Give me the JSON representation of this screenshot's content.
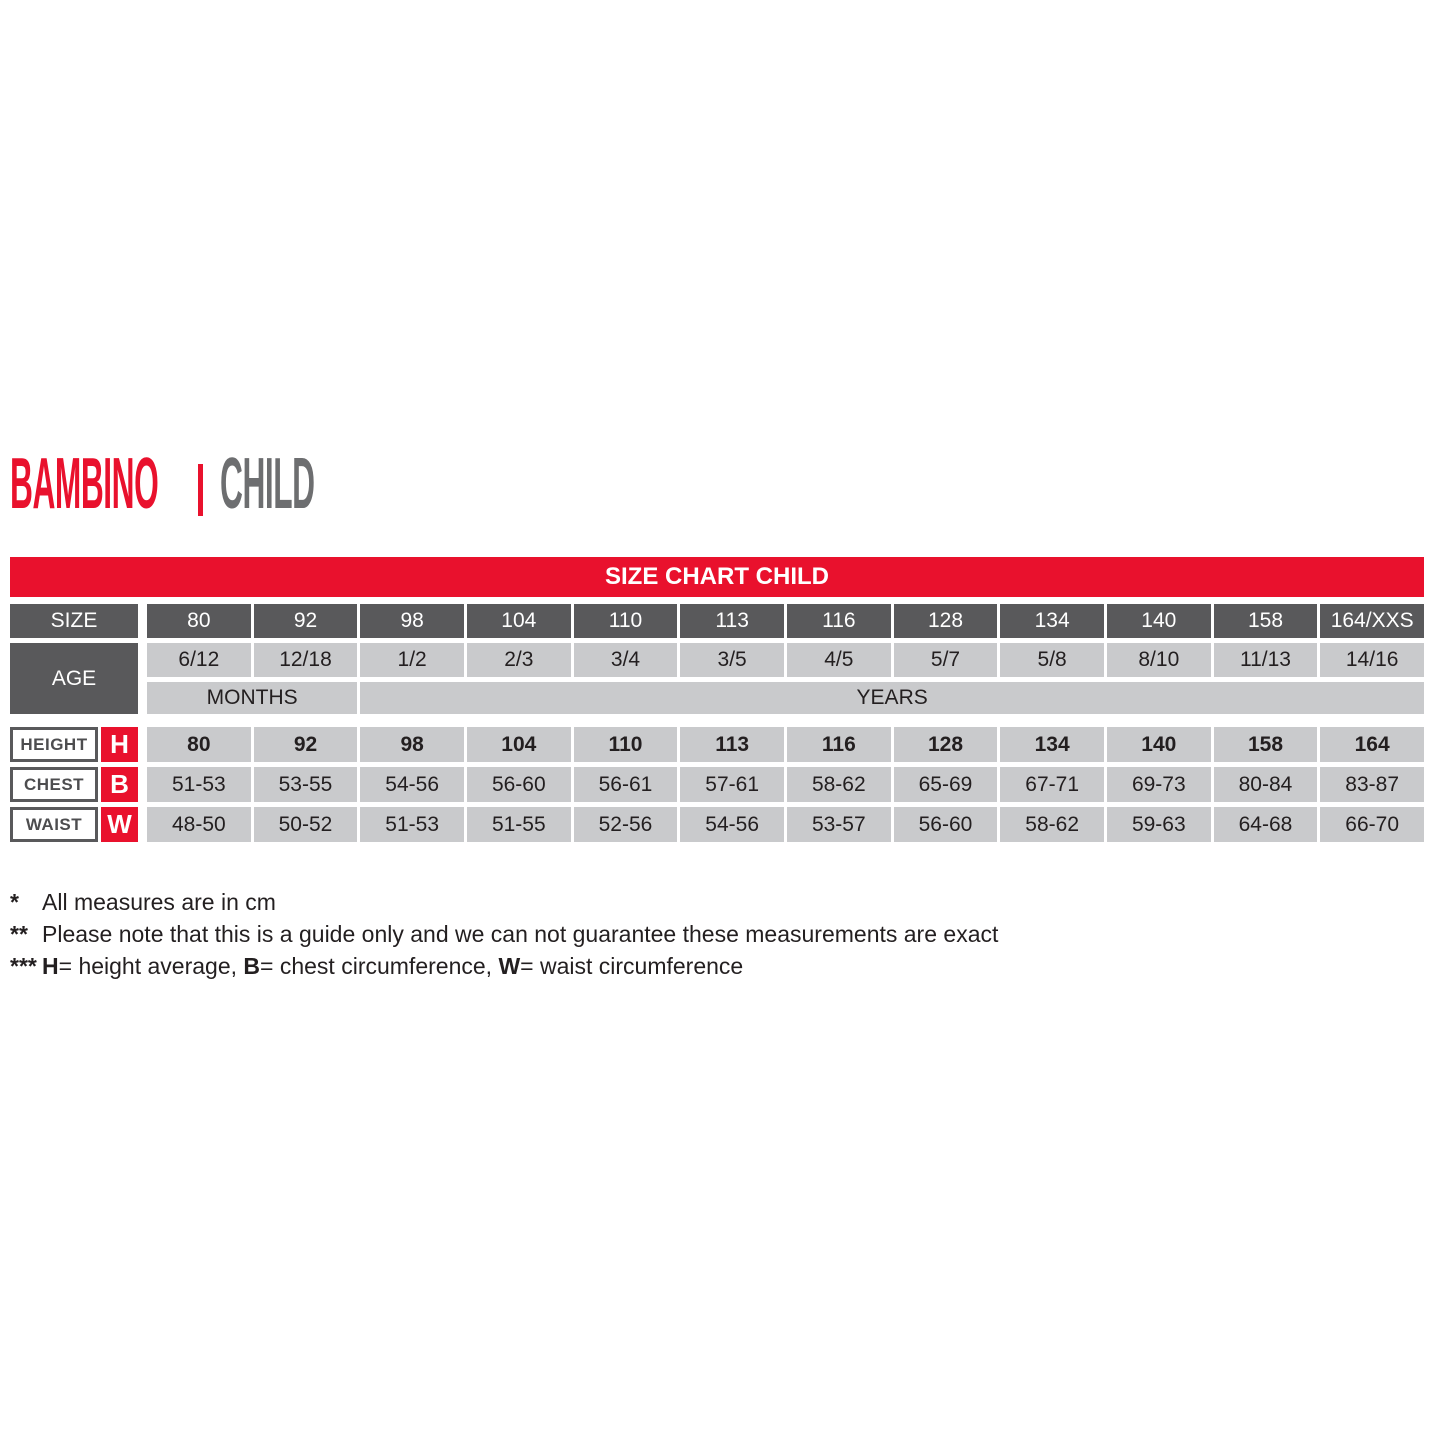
{
  "title": {
    "primary": "BAMBINO",
    "separator": "|",
    "secondary": "CHILD"
  },
  "banner": {
    "label": "SIZE CHART CHILD"
  },
  "table": {
    "size_header": "SIZE",
    "age_header": "AGE",
    "height_header": "HEIGHT",
    "chest_header": "CHEST",
    "waist_header": "WAIST",
    "height_badge": "H",
    "chest_badge": "B",
    "waist_badge": "W",
    "units": {
      "months": "MONTHS",
      "years": "YEARS"
    },
    "sizes": [
      "80",
      "92",
      "98",
      "104",
      "110",
      "113",
      "116",
      "128",
      "134",
      "140",
      "158",
      "164/XXS"
    ],
    "ages": [
      "6/12",
      "12/18",
      "1/2",
      "2/3",
      "3/4",
      "3/5",
      "4/5",
      "5/7",
      "5/8",
      "8/10",
      "11/13",
      "14/16"
    ],
    "height": [
      "80",
      "92",
      "98",
      "104",
      "110",
      "113",
      "116",
      "128",
      "134",
      "140",
      "158",
      "164"
    ],
    "chest": [
      "51-53",
      "53-55",
      "54-56",
      "56-60",
      "56-61",
      "57-61",
      "58-62",
      "65-69",
      "67-71",
      "69-73",
      "80-84",
      "83-87"
    ],
    "waist": [
      "48-50",
      "50-52",
      "51-53",
      "51-55",
      "52-56",
      "54-56",
      "53-57",
      "56-60",
      "58-62",
      "59-63",
      "64-68",
      "66-70"
    ]
  },
  "footnotes": [
    {
      "marker": "*",
      "text": "All measures are in cm"
    },
    {
      "marker": "**",
      "text": "Please note that this is a guide only and we can not guarantee these measurements are exact"
    },
    {
      "marker": "***",
      "segments": [
        {
          "text": "H",
          "bold": true
        },
        {
          "text": "= height average, "
        },
        {
          "text": "B",
          "bold": true
        },
        {
          "text": "= chest circumference, "
        },
        {
          "text": "W",
          "bold": true
        },
        {
          "text": "= waist circumference"
        }
      ]
    }
  ],
  "colors": {
    "accent_red": "#e9112d",
    "dark_gray": "#59595b",
    "light_gray": "#c9cacc",
    "title_gray": "#6d6e70",
    "text_ink": "#231f20",
    "label_ink": "#4d4d4f"
  }
}
